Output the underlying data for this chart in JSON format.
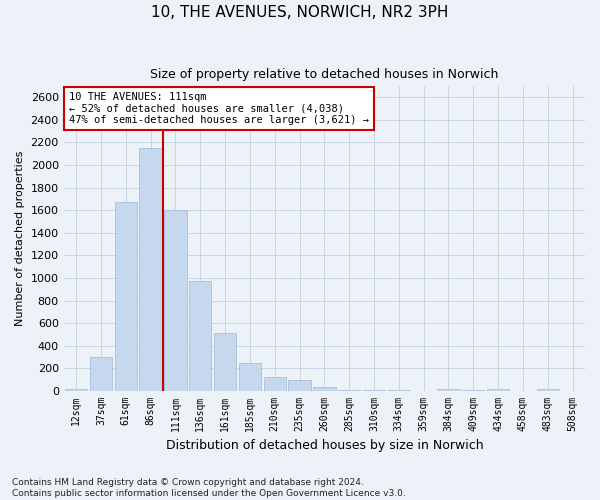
{
  "title": "10, THE AVENUES, NORWICH, NR2 3PH",
  "subtitle": "Size of property relative to detached houses in Norwich",
  "xlabel": "Distribution of detached houses by size in Norwich",
  "ylabel": "Number of detached properties",
  "bar_labels": [
    "12sqm",
    "37sqm",
    "61sqm",
    "86sqm",
    "111sqm",
    "136sqm",
    "161sqm",
    "185sqm",
    "210sqm",
    "235sqm",
    "260sqm",
    "285sqm",
    "310sqm",
    "334sqm",
    "359sqm",
    "384sqm",
    "409sqm",
    "434sqm",
    "458sqm",
    "483sqm",
    "508sqm"
  ],
  "bar_values": [
    20,
    300,
    1675,
    2150,
    1600,
    975,
    510,
    245,
    120,
    100,
    40,
    8,
    10,
    5,
    0,
    20,
    5,
    20,
    0,
    20,
    0
  ],
  "bar_color": "#c5d8ee",
  "bar_edgecolor": "#a0b8d8",
  "vline_color": "#cc0000",
  "vline_x_index": 4,
  "annotation_text": "10 THE AVENUES: 111sqm\n← 52% of detached houses are smaller (4,038)\n47% of semi-detached houses are larger (3,621) →",
  "ylim": [
    0,
    2700
  ],
  "yticks": [
    0,
    200,
    400,
    600,
    800,
    1000,
    1200,
    1400,
    1600,
    1800,
    2000,
    2200,
    2400,
    2600
  ],
  "grid_color": "#c8d4e4",
  "plot_bg_color": "#edf2f8",
  "fig_bg_color": "#edf2f8",
  "footer_line1": "Contains HM Land Registry data © Crown copyright and database right 2024.",
  "footer_line2": "Contains public sector information licensed under the Open Government Licence v3.0.",
  "title_fontsize": 11,
  "subtitle_fontsize": 9,
  "ylabel_fontsize": 8,
  "xlabel_fontsize": 9,
  "annot_fontsize": 7.5,
  "annot_box_fc": "#ffffff",
  "annot_box_ec": "#cc0000"
}
